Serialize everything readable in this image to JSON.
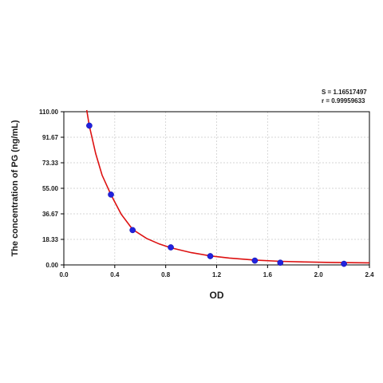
{
  "chart_data": {
    "type": "scatter",
    "title": "",
    "xlabel": "OD",
    "ylabel": "The concentration of PG (ng/mL)",
    "xlim": [
      0.0,
      2.4
    ],
    "ylim": [
      0.0,
      110.0
    ],
    "x_ticks": [
      "0.0",
      "0.4",
      "0.8",
      "1.2",
      "1.6",
      "2.0",
      "2.4"
    ],
    "y_ticks": [
      "0.00",
      "18.33",
      "36.67",
      "55.00",
      "73.33",
      "91.67",
      "110.00"
    ],
    "grid": true,
    "stats": {
      "s": "S = 1.16517497",
      "r": "r = 0.99959633"
    },
    "colors": {
      "points": "#2222dd",
      "fit_line": "#dd1111",
      "grid": "#c8c8c8"
    },
    "series": [
      {
        "values": [
          {
            "x": 0.2,
            "y": 100.0
          },
          {
            "x": 0.37,
            "y": 50.5
          },
          {
            "x": 0.54,
            "y": 25.0
          },
          {
            "x": 0.84,
            "y": 12.6
          },
          {
            "x": 1.15,
            "y": 6.3
          },
          {
            "x": 1.5,
            "y": 3.1
          },
          {
            "x": 1.7,
            "y": 1.6
          },
          {
            "x": 2.2,
            "y": 0.8
          }
        ]
      }
    ],
    "fit_curve": [
      {
        "x": 0.18,
        "y": 112.0
      },
      {
        "x": 0.2,
        "y": 100.0
      },
      {
        "x": 0.25,
        "y": 80.0
      },
      {
        "x": 0.3,
        "y": 64.5
      },
      {
        "x": 0.37,
        "y": 50.5
      },
      {
        "x": 0.45,
        "y": 36.5
      },
      {
        "x": 0.54,
        "y": 25.5
      },
      {
        "x": 0.65,
        "y": 19.0
      },
      {
        "x": 0.75,
        "y": 15.0
      },
      {
        "x": 0.84,
        "y": 12.3
      },
      {
        "x": 1.0,
        "y": 8.8
      },
      {
        "x": 1.15,
        "y": 6.5
      },
      {
        "x": 1.3,
        "y": 4.9
      },
      {
        "x": 1.5,
        "y": 3.5
      },
      {
        "x": 1.7,
        "y": 2.6
      },
      {
        "x": 1.9,
        "y": 2.1
      },
      {
        "x": 2.1,
        "y": 1.8
      },
      {
        "x": 2.4,
        "y": 1.5
      }
    ]
  }
}
